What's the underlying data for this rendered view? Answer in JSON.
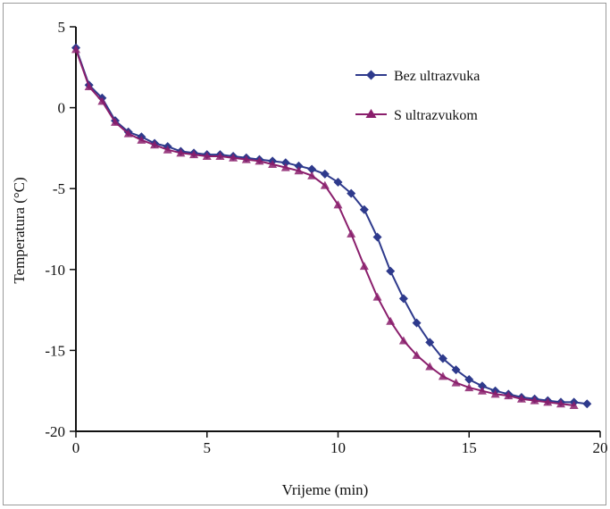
{
  "chart_data": {
    "type": "line",
    "xlabel": "Vrijeme (min)",
    "ylabel": "Temperatura (°C)",
    "xlim": [
      0,
      20
    ],
    "ylim": [
      -20,
      5
    ],
    "xticks": [
      "0",
      "5",
      "10",
      "15",
      "20"
    ],
    "yticks": [
      "5",
      "0",
      "-5",
      "-10",
      "-15",
      "-20"
    ],
    "grid": false,
    "legend_position": "top-right",
    "series": [
      {
        "name": "Bez ultrazvuka",
        "color": "#2e3a8c",
        "marker": "diamond",
        "x": [
          0,
          0.5,
          1,
          1.5,
          2,
          2.5,
          3,
          3.5,
          4,
          4.5,
          5,
          5.5,
          6,
          6.5,
          7,
          7.5,
          8,
          8.5,
          9,
          9.5,
          10,
          10.5,
          11,
          11.5,
          12,
          12.5,
          13,
          13.5,
          14,
          14.5,
          15,
          15.5,
          16,
          16.5,
          17,
          17.5,
          18,
          18.5,
          19,
          19.5
        ],
        "y": [
          3.7,
          1.4,
          0.6,
          -0.8,
          -1.5,
          -1.8,
          -2.2,
          -2.4,
          -2.7,
          -2.8,
          -2.9,
          -2.9,
          -3.0,
          -3.1,
          -3.2,
          -3.3,
          -3.4,
          -3.6,
          -3.8,
          -4.1,
          -4.6,
          -5.3,
          -6.3,
          -8.0,
          -10.1,
          -11.8,
          -13.3,
          -14.5,
          -15.5,
          -16.2,
          -16.8,
          -17.2,
          -17.5,
          -17.7,
          -17.9,
          -18.0,
          -18.1,
          -18.2,
          -18.2,
          -18.3
        ]
      },
      {
        "name": "S ultrazvukom",
        "color": "#8a1e6c",
        "marker": "triangle",
        "x": [
          0,
          0.5,
          1,
          1.5,
          2,
          2.5,
          3,
          3.5,
          4,
          4.5,
          5,
          5.5,
          6,
          6.5,
          7,
          7.5,
          8,
          8.5,
          9,
          9.5,
          10,
          10.5,
          11,
          11.5,
          12,
          12.5,
          13,
          13.5,
          14,
          14.5,
          15,
          15.5,
          16,
          16.5,
          17,
          17.5,
          18,
          18.5,
          19
        ],
        "y": [
          3.6,
          1.3,
          0.4,
          -0.9,
          -1.6,
          -2.0,
          -2.3,
          -2.6,
          -2.8,
          -2.9,
          -3.0,
          -3.0,
          -3.1,
          -3.2,
          -3.3,
          -3.5,
          -3.7,
          -3.9,
          -4.2,
          -4.8,
          -6.0,
          -7.8,
          -9.8,
          -11.7,
          -13.2,
          -14.4,
          -15.3,
          -16.0,
          -16.6,
          -17.0,
          -17.3,
          -17.5,
          -17.7,
          -17.8,
          -18.0,
          -18.1,
          -18.2,
          -18.3,
          -18.4
        ]
      }
    ]
  }
}
